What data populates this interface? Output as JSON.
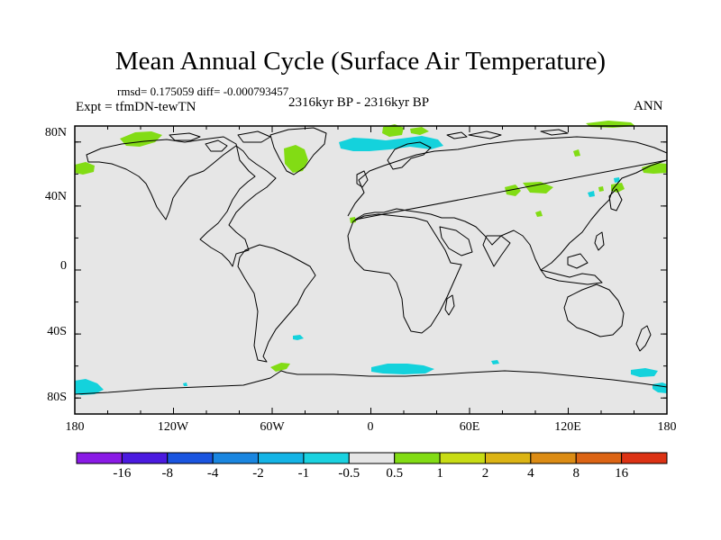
{
  "title": "Mean Annual Cycle (Surface Air Temperature)",
  "stats": "rmsd= 0.175059 diff= -0.000793457",
  "expt": "Expt = tfmDN-tewTN",
  "period": "2316kyr BP - 2316kyr BP",
  "season": "ANN",
  "map": {
    "lon_range": [
      -180,
      180
    ],
    "lat_range": [
      -90,
      90
    ],
    "background_color": "#e6e6e6",
    "y_ticks": [
      {
        "value": 80,
        "label": "80N"
      },
      {
        "value": 40,
        "label": "40N"
      },
      {
        "value": 0,
        "label": "0"
      },
      {
        "value": -40,
        "label": "40S"
      },
      {
        "value": -80,
        "label": "80S"
      }
    ],
    "x_ticks": [
      {
        "value": -180,
        "label": "180"
      },
      {
        "value": -120,
        "label": "120W"
      },
      {
        "value": -60,
        "label": "60W"
      },
      {
        "value": 0,
        "label": "0"
      },
      {
        "value": 60,
        "label": "60E"
      },
      {
        "value": 120,
        "label": "120E"
      },
      {
        "value": 180,
        "label": "180"
      }
    ]
  },
  "colorbar": {
    "colors": [
      "#8a1ae6",
      "#4b1ae0",
      "#1a55e0",
      "#1a86e0",
      "#14b4e6",
      "#1ad2e0",
      "#e6e6e6",
      "#82dc14",
      "#c8dc14",
      "#dcb414",
      "#dc8c14",
      "#dc6414",
      "#dc3214"
    ],
    "labels": [
      "-16",
      "-8",
      "-4",
      "-2",
      "-1",
      "-0.5",
      "0.5",
      "1",
      "2",
      "4",
      "8",
      "16"
    ]
  },
  "anomaly_legend": {
    "cyan": "#14d2dc",
    "green": "#82dc14"
  }
}
